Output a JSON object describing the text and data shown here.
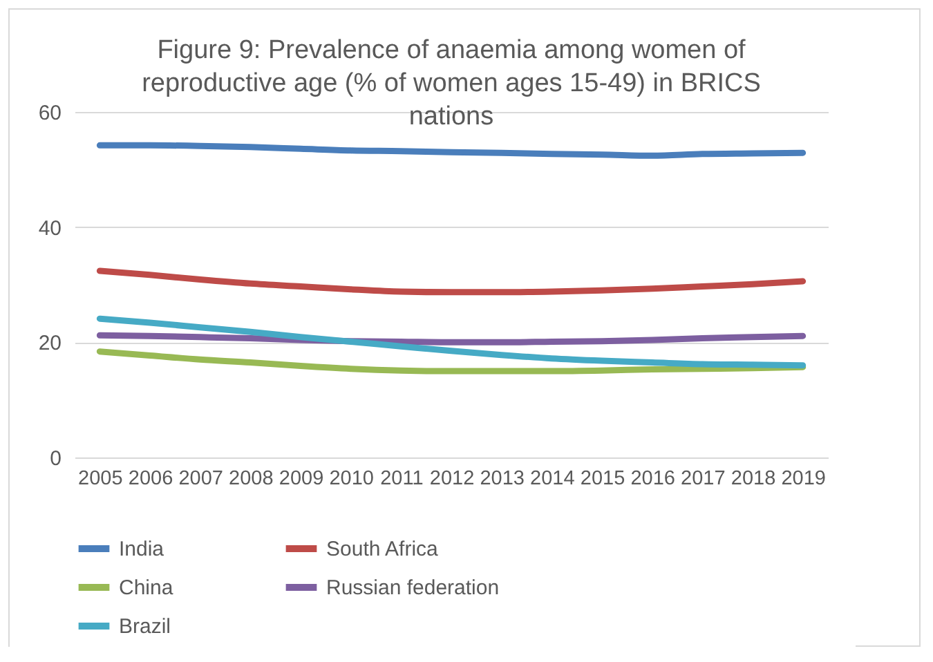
{
  "chart_data": {
    "type": "line",
    "title": "Figure 9: Prevalence of anaemia among women of reproductive age (% of women ages 15-49) in BRICS nations",
    "categories": [
      "2005",
      "2006",
      "2007",
      "2008",
      "2009",
      "2010",
      "2011",
      "2012",
      "2013",
      "2014",
      "2015",
      "2016",
      "2017",
      "2018",
      "2019"
    ],
    "series": [
      {
        "name": "India",
        "color": "#4a7ebb",
        "values": [
          54.2,
          54.2,
          54.1,
          53.9,
          53.6,
          53.3,
          53.2,
          53.0,
          52.9,
          52.7,
          52.6,
          52.4,
          52.7,
          52.8,
          52.9
        ]
      },
      {
        "name": "South Africa",
        "color": "#be4b48",
        "values": [
          32.4,
          31.7,
          30.9,
          30.2,
          29.7,
          29.2,
          28.8,
          28.7,
          28.7,
          28.8,
          29.0,
          29.3,
          29.7,
          30.1,
          30.6
        ]
      },
      {
        "name": "China",
        "color": "#98b954",
        "values": [
          18.4,
          17.7,
          17.0,
          16.5,
          15.9,
          15.4,
          15.1,
          15.0,
          15.0,
          15.0,
          15.1,
          15.3,
          15.4,
          15.5,
          15.7
        ]
      },
      {
        "name": "Russian federation",
        "color": "#7d5fa0",
        "values": [
          21.2,
          21.1,
          20.9,
          20.7,
          20.4,
          20.2,
          20.1,
          20.0,
          20.0,
          20.1,
          20.2,
          20.4,
          20.7,
          20.9,
          21.1
        ]
      },
      {
        "name": "Brazil",
        "color": "#46aac5",
        "values": [
          24.1,
          23.4,
          22.6,
          21.8,
          20.9,
          20.1,
          19.3,
          18.5,
          17.8,
          17.2,
          16.8,
          16.5,
          16.2,
          16.1,
          16.0
        ]
      }
    ],
    "ylim": [
      0,
      60
    ],
    "yticks": [
      0,
      20,
      40,
      60
    ],
    "grid": "y",
    "legend": "bottom"
  }
}
